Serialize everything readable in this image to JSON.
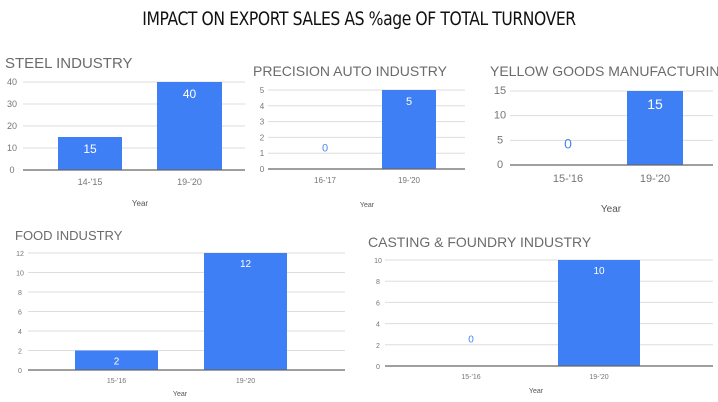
{
  "title": "IMPACT ON EXPORT SALES AS %age OF TOTAL TURNOVER",
  "colors": {
    "bar": "#3f7ff5",
    "grid": "#dddddd",
    "axis": "#666666",
    "text": "#757575",
    "zero_label": "#4a86f0"
  },
  "chart_data": [
    {
      "type": "bar",
      "title": "STEEL INDUSTRY",
      "xlabel": "Year",
      "ylabel": "",
      "categories": [
        "14-'15",
        "19-'20"
      ],
      "values": [
        15,
        40
      ],
      "ylim": [
        0,
        40
      ],
      "yticks": [
        0,
        10,
        20,
        30,
        40
      ],
      "grid": true
    },
    {
      "type": "bar",
      "title": "PRECISION AUTO INDUSTRY",
      "xlabel": "Year",
      "ylabel": "",
      "categories": [
        "16-'17",
        "19-'20"
      ],
      "values": [
        0,
        5
      ],
      "ylim": [
        0,
        5
      ],
      "yticks": [
        0,
        1,
        2,
        3,
        4,
        5
      ],
      "grid": true
    },
    {
      "type": "bar",
      "title": "YELLOW GOODS MANUFACTURING",
      "xlabel": "Year",
      "ylabel": "",
      "categories": [
        "15-'16",
        "19-'20"
      ],
      "values": [
        0,
        15
      ],
      "ylim": [
        0,
        15
      ],
      "yticks": [
        0,
        5,
        10,
        15
      ],
      "grid": true
    },
    {
      "type": "bar",
      "title": "FOOD INDUSTRY",
      "xlabel": "Year",
      "ylabel": "",
      "categories": [
        "15-'16",
        "19-'20"
      ],
      "values": [
        2,
        12
      ],
      "ylim": [
        0,
        12
      ],
      "yticks": [
        0,
        2,
        4,
        6,
        8,
        10,
        12
      ],
      "grid": true
    },
    {
      "type": "bar",
      "title": "CASTING & FOUNDRY INDUSTRY",
      "xlabel": "Year",
      "ylabel": "",
      "categories": [
        "15-'16",
        "19-'20"
      ],
      "values": [
        0,
        10
      ],
      "ylim": [
        0,
        10
      ],
      "yticks": [
        0,
        2,
        4,
        6,
        8,
        10
      ],
      "grid": true
    }
  ]
}
